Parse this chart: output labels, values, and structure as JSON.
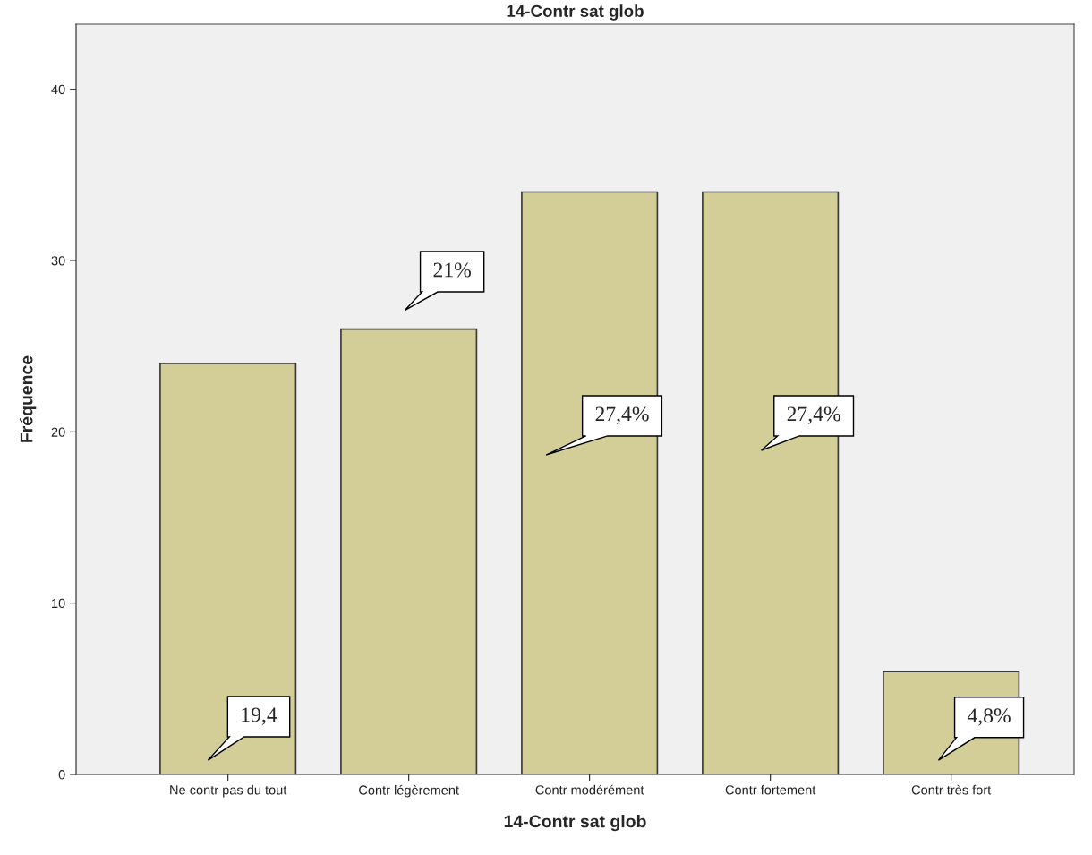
{
  "chart_data": {
    "type": "bar",
    "title": "14-Contr sat glob",
    "xlabel": "14-Contr sat glob",
    "ylabel": "Fréquence",
    "categories": [
      "Ne contr pas du tout",
      "Contr légèrement",
      "Contr modérément",
      "Contr fortement",
      "Contr très fort"
    ],
    "values": [
      24,
      26,
      34,
      34,
      6
    ],
    "color": "#d3ce97",
    "ylim": [
      0,
      43.8
    ],
    "yticks": [
      0,
      10,
      20,
      30,
      40
    ],
    "grid": false,
    "annotations": [
      "19,4",
      "21%",
      "27,4%",
      "27,4%",
      "4,8%"
    ]
  }
}
